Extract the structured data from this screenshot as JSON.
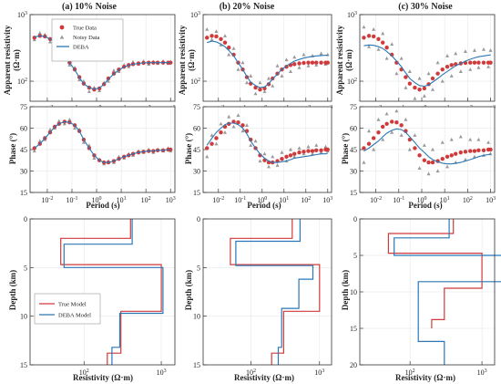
{
  "panel_titles": [
    "(a) 10% Noise",
    "(b) 20% Noise",
    "(c) 30% Noise"
  ],
  "row_ylabels": {
    "resistivity": [
      "Apparent resistivity",
      "(Ω·m)"
    ],
    "phase": "Phase (°)",
    "depth": "Depth (km)"
  },
  "row_xlabels": {
    "period": "Period (s)",
    "resistivity": "Resistivity (Ω·m)"
  },
  "legend_top": [
    "True Data",
    "Noisy Data",
    "DEBA"
  ],
  "legend_bottom": [
    "True Model",
    "DEBA Model"
  ],
  "colors": {
    "true": "#d03a3a",
    "deba": "#2b77b5",
    "noisy": "#9a9a9a"
  },
  "chart_data": [
    {
      "type": "scatter",
      "panel": "a-apparent-resistivity",
      "title": "(a) 10% Noise",
      "xscale": "log",
      "yscale": "log",
      "xlim": [
        0.002,
        1500
      ],
      "ylim": [
        50,
        1000
      ],
      "period": [
        0.003,
        0.005,
        0.008,
        0.013,
        0.02,
        0.03,
        0.05,
        0.08,
        0.13,
        0.2,
        0.3,
        0.5,
        0.8,
        1.3,
        2,
        3,
        5,
        8,
        13,
        20,
        30,
        50,
        80,
        130,
        200,
        300,
        500,
        800,
        1000
      ],
      "true_data": [
        450,
        480,
        470,
        430,
        380,
        320,
        250,
        190,
        150,
        115,
        92,
        80,
        75,
        78,
        90,
        110,
        130,
        150,
        165,
        175,
        180,
        185,
        188,
        190,
        190,
        190,
        190,
        190,
        190
      ],
      "noisy_data": [
        420,
        530,
        500,
        390,
        400,
        300,
        270,
        175,
        160,
        105,
        100,
        70,
        80,
        72,
        95,
        100,
        145,
        140,
        175,
        165,
        195,
        180,
        200,
        180,
        195,
        185,
        200,
        185,
        195
      ],
      "deba": [
        460,
        480,
        470,
        430,
        380,
        320,
        250,
        190,
        148,
        113,
        92,
        80,
        76,
        79,
        90,
        108,
        128,
        148,
        163,
        173,
        180,
        185,
        188,
        189,
        190,
        190,
        190,
        190,
        190
      ]
    },
    {
      "type": "scatter",
      "panel": "b-apparent-resistivity",
      "title": "(b) 20% Noise",
      "xscale": "log",
      "yscale": "log",
      "xlim": [
        0.002,
        1500
      ],
      "ylim": [
        50,
        1000
      ],
      "period": [
        0.003,
        0.005,
        0.008,
        0.013,
        0.02,
        0.03,
        0.05,
        0.08,
        0.13,
        0.2,
        0.3,
        0.5,
        0.8,
        1.3,
        2,
        3,
        5,
        8,
        13,
        20,
        30,
        50,
        80,
        130,
        200,
        300,
        500,
        800,
        1000
      ],
      "true_data": [
        450,
        480,
        470,
        430,
        380,
        320,
        250,
        190,
        150,
        115,
        92,
        80,
        75,
        78,
        90,
        110,
        130,
        150,
        165,
        175,
        180,
        185,
        188,
        190,
        190,
        190,
        190,
        190,
        190
      ],
      "noisy_data": [
        600,
        420,
        560,
        350,
        480,
        250,
        310,
        150,
        190,
        95,
        120,
        65,
        95,
        70,
        110,
        85,
        170,
        120,
        210,
        140,
        230,
        160,
        250,
        170,
        240,
        175,
        260,
        180,
        250
      ],
      "deba": [
        380,
        400,
        390,
        360,
        330,
        290,
        240,
        190,
        150,
        118,
        97,
        86,
        80,
        82,
        92,
        108,
        128,
        150,
        170,
        185,
        200,
        212,
        222,
        230,
        236,
        240,
        243,
        245,
        246
      ]
    },
    {
      "type": "scatter",
      "panel": "c-apparent-resistivity",
      "title": "(c) 30% Noise",
      "xscale": "log",
      "yscale": "log",
      "xlim": [
        0.002,
        1500
      ],
      "ylim": [
        50,
        1000
      ],
      "period": [
        0.003,
        0.005,
        0.008,
        0.013,
        0.02,
        0.03,
        0.05,
        0.08,
        0.13,
        0.2,
        0.3,
        0.5,
        0.8,
        1.3,
        2,
        3,
        5,
        8,
        13,
        20,
        30,
        50,
        80,
        130,
        200,
        300,
        500,
        800,
        1000
      ],
      "true_data": [
        450,
        480,
        470,
        430,
        380,
        320,
        250,
        190,
        150,
        115,
        92,
        80,
        75,
        78,
        90,
        110,
        130,
        150,
        165,
        175,
        180,
        185,
        188,
        190,
        190,
        190,
        190,
        190,
        190
      ],
      "noisy_data": [
        650,
        330,
        600,
        300,
        520,
        220,
        360,
        130,
        220,
        80,
        140,
        55,
        110,
        60,
        130,
        75,
        190,
        100,
        240,
        120,
        260,
        140,
        280,
        150,
        290,
        160,
        300,
        165,
        290
      ],
      "deba": [
        340,
        350,
        345,
        330,
        310,
        280,
        240,
        200,
        165,
        133,
        110,
        95,
        86,
        84,
        88,
        97,
        110,
        125,
        140,
        155,
        170,
        185,
        200,
        213,
        224,
        233,
        240,
        245,
        248
      ]
    },
    {
      "type": "scatter",
      "panel": "a-phase",
      "xscale": "log",
      "xlim": [
        0.002,
        1500
      ],
      "ylim": [
        15,
        75
      ],
      "period": [
        0.003,
        0.005,
        0.008,
        0.013,
        0.02,
        0.03,
        0.05,
        0.08,
        0.13,
        0.2,
        0.3,
        0.5,
        0.8,
        1.3,
        2,
        3,
        5,
        8,
        13,
        20,
        30,
        50,
        80,
        130,
        200,
        300,
        500,
        800,
        1000
      ],
      "true_data": [
        46,
        49,
        53,
        57,
        61,
        63,
        64.5,
        64,
        62,
        58,
        52,
        46,
        41,
        37.5,
        36,
        36,
        37,
        38.5,
        40,
        41,
        42,
        43,
        43.5,
        44,
        44,
        44.5,
        44.5,
        45,
        45
      ],
      "noisy_data": [
        44,
        51,
        52,
        59,
        60,
        65,
        63,
        66,
        60,
        59,
        50,
        48,
        39,
        38,
        35,
        37,
        36,
        40,
        39,
        42,
        41,
        44,
        43,
        45,
        43,
        45,
        44,
        46,
        44
      ],
      "deba": [
        46,
        49,
        53,
        57,
        61,
        63,
        64.5,
        64,
        62,
        58,
        52,
        46,
        41,
        37.5,
        36,
        36,
        37,
        38.5,
        40,
        41,
        42,
        43,
        43.5,
        44,
        44,
        44.5,
        44.5,
        45,
        45
      ]
    },
    {
      "type": "scatter",
      "panel": "b-phase",
      "xscale": "log",
      "xlim": [
        0.002,
        1500
      ],
      "ylim": [
        15,
        75
      ],
      "period": [
        0.003,
        0.005,
        0.008,
        0.013,
        0.02,
        0.03,
        0.05,
        0.08,
        0.13,
        0.2,
        0.3,
        0.5,
        0.8,
        1.3,
        2,
        3,
        5,
        8,
        13,
        20,
        30,
        50,
        80,
        130,
        200,
        300,
        500,
        800,
        1000
      ],
      "true_data": [
        46,
        49,
        53,
        57,
        61,
        63,
        64.5,
        64,
        62,
        58,
        52,
        46,
        41,
        37.5,
        36,
        36,
        37,
        38.5,
        40,
        41,
        42,
        43,
        43.5,
        44,
        44,
        44.5,
        44.5,
        45,
        45
      ],
      "noisy_data": [
        40,
        55,
        49,
        63,
        57,
        68,
        61,
        69,
        58,
        62,
        48,
        51,
        37,
        42,
        33,
        40,
        34,
        43,
        37,
        45,
        40,
        46,
        42,
        47,
        42,
        48,
        43,
        47,
        44
      ],
      "deba": [
        48,
        53,
        57,
        60,
        62.5,
        63.5,
        63.5,
        62.5,
        60,
        56,
        51,
        46,
        42,
        39,
        37,
        36,
        36,
        36.5,
        37,
        38,
        39,
        39.5,
        40,
        40.5,
        41,
        41.5,
        42,
        42,
        42.5
      ]
    },
    {
      "type": "scatter",
      "panel": "c-phase",
      "xscale": "log",
      "xlim": [
        0.002,
        1500
      ],
      "ylim": [
        15,
        75
      ],
      "period": [
        0.003,
        0.005,
        0.008,
        0.013,
        0.02,
        0.03,
        0.05,
        0.08,
        0.13,
        0.2,
        0.3,
        0.5,
        0.8,
        1.3,
        2,
        3,
        5,
        8,
        13,
        20,
        30,
        50,
        80,
        130,
        200,
        300,
        500,
        800,
        1000
      ],
      "true_data": [
        46,
        49,
        53,
        57,
        61,
        63,
        64.5,
        64,
        62,
        58,
        52,
        46,
        41,
        37.5,
        36,
        36,
        37,
        38.5,
        40,
        41,
        42,
        43,
        43.5,
        44,
        44,
        44.5,
        44.5,
        45,
        45
      ],
      "noisy_data": [
        36,
        58,
        45,
        66,
        52,
        70,
        57,
        72,
        55,
        66,
        45,
        55,
        32,
        48,
        28,
        45,
        30,
        50,
        33,
        52,
        36,
        54,
        38,
        52,
        40,
        52,
        41,
        50,
        42
      ],
      "deba": [
        44,
        46,
        48.5,
        51,
        54,
        56.5,
        58.5,
        59.5,
        59,
        57,
        54,
        50,
        46,
        43,
        40,
        38,
        36.5,
        35.5,
        35,
        35,
        35.5,
        36,
        37,
        38,
        39,
        40,
        41,
        41.5,
        42
      ]
    },
    {
      "type": "line",
      "panel": "a-model",
      "xscale": "log",
      "xlim": [
        20,
        1500
      ],
      "ylim": [
        15,
        0
      ],
      "true_model": {
        "resistivity": [
          400,
          50,
          1000,
          300,
          200
        ],
        "depth_top": [
          0,
          2,
          4.7,
          9.5,
          13.8
        ],
        "depth_bottom": [
          2,
          4.7,
          9.5,
          13.8,
          15
        ]
      },
      "deba_model": {
        "resistivity": [
          420,
          55,
          1050,
          290,
          230
        ],
        "depth_top": [
          0,
          2.6,
          5.0,
          9.7,
          13.2
        ],
        "depth_bottom": [
          2.6,
          5.0,
          9.7,
          13.2,
          15
        ]
      }
    },
    {
      "type": "line",
      "panel": "b-model",
      "xscale": "log",
      "xlim": [
        20,
        1500
      ],
      "ylim": [
        15,
        0
      ],
      "true_model": {
        "resistivity": [
          400,
          50,
          1000,
          300,
          200
        ],
        "depth_top": [
          0,
          2,
          4.7,
          9.5,
          13.8
        ],
        "depth_bottom": [
          2,
          4.7,
          9.5,
          13.8,
          15
        ]
      },
      "deba_model": {
        "resistivity": [
          520,
          60,
          800,
          500,
          280,
          250
        ],
        "depth_top": [
          0,
          2.3,
          4.8,
          6.2,
          9.2,
          13.2
        ],
        "depth_bottom": [
          2.3,
          4.8,
          6.2,
          9.2,
          13.2,
          15
        ]
      }
    },
    {
      "type": "line",
      "panel": "c-model",
      "xscale": "log",
      "xlim": [
        20,
        1500
      ],
      "ylim": [
        20,
        0
      ],
      "true_model": {
        "resistivity": [
          400,
          50,
          1000,
          300,
          200
        ],
        "depth_top": [
          0,
          2,
          4.7,
          9.5,
          13.8
        ],
        "depth_bottom": [
          2,
          4.7,
          9.5,
          13.8,
          15
        ]
      },
      "deba_model": {
        "resistivity": [
          350,
          60,
          2200,
          130,
          300
        ],
        "depth_top": [
          0,
          2.6,
          5.0,
          8.6,
          16.8
        ],
        "depth_bottom": [
          2.6,
          5.0,
          8.6,
          16.8,
          20
        ]
      }
    }
  ]
}
